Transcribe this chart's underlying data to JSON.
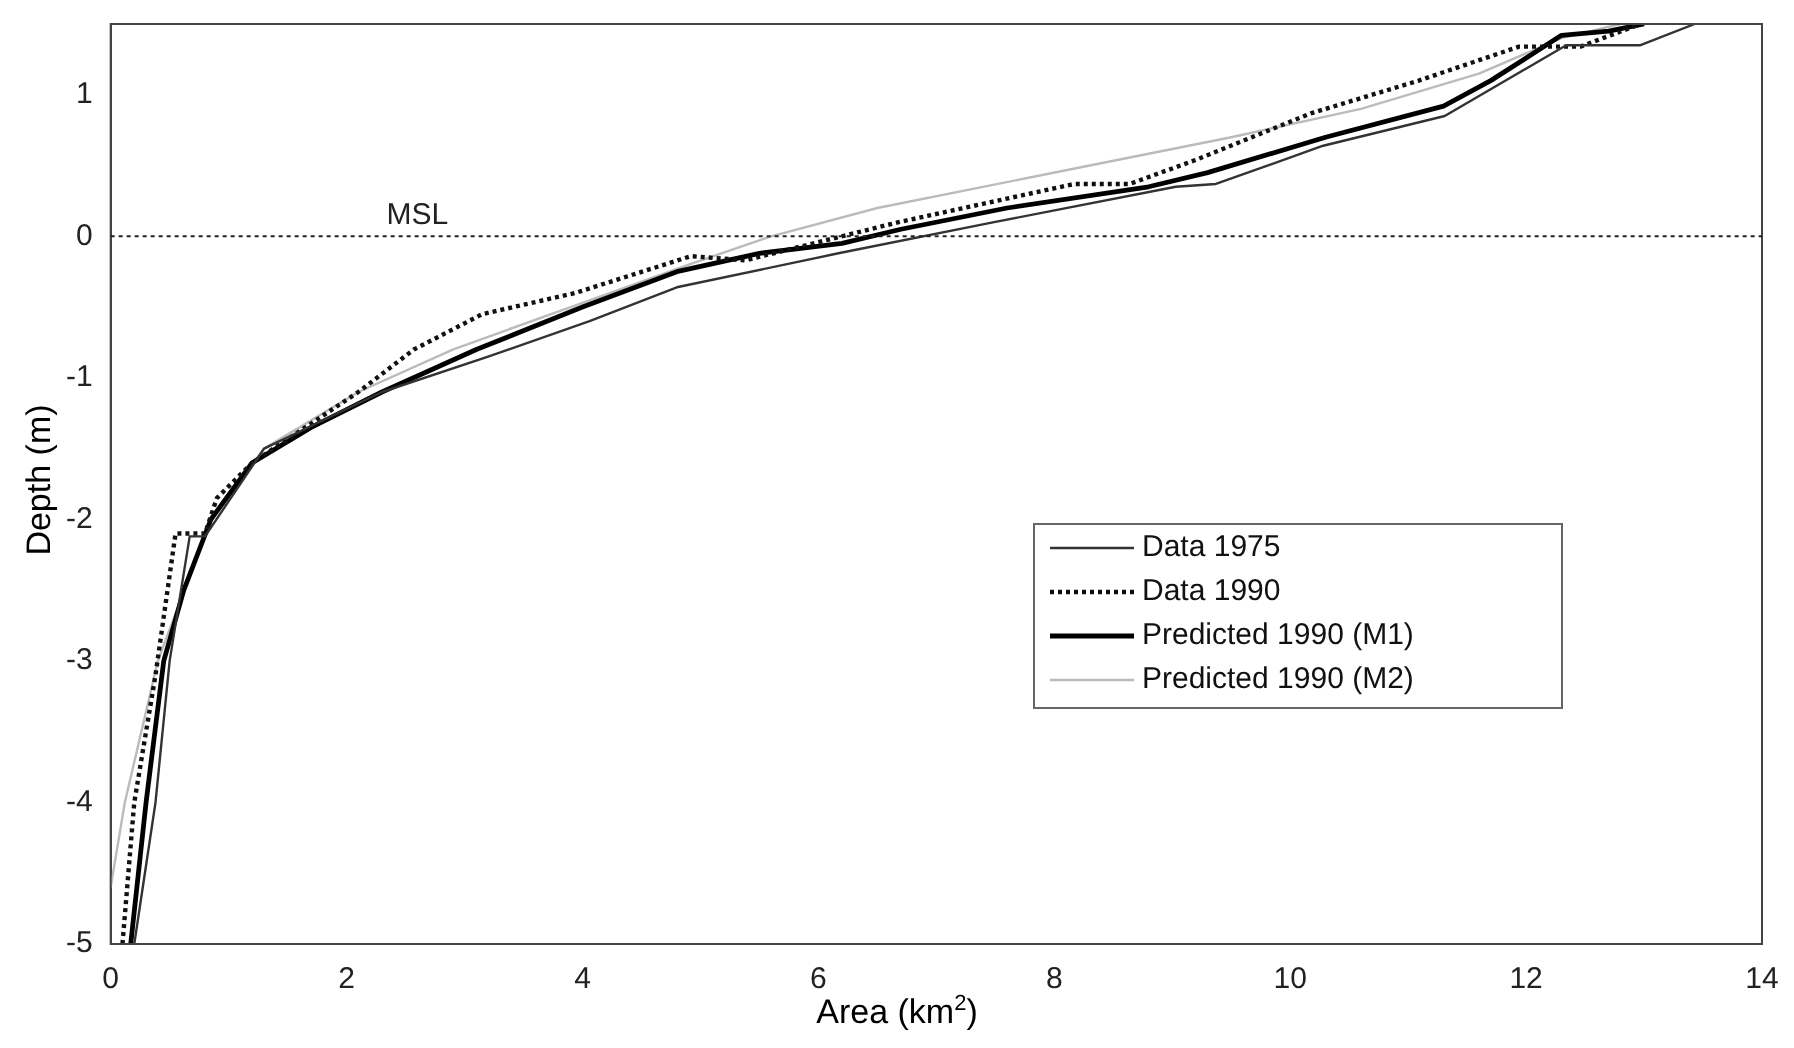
{
  "chart_data": {
    "type": "line",
    "xlabel": "Area (km$^{2}$)",
    "ylabel": "Depth (m)",
    "xlim": [
      0,
      14
    ],
    "xticks": [
      0,
      2,
      4,
      6,
      8,
      10,
      12,
      14
    ],
    "ylim": [
      -5,
      1.5
    ],
    "yticks": [
      -5,
      -4,
      -3,
      -2,
      -1,
      0,
      1
    ],
    "grid": false,
    "legend": "right",
    "marker": "none",
    "ref_lines": [
      {
        "axis": "y",
        "value": 0,
        "label": "MSL",
        "line_style": "dotted",
        "color": "#222222"
      }
    ],
    "series": [
      {
        "name": "Data 1975",
        "color": "#333333",
        "line_style": "solid",
        "x": [
          0.2,
          0.38,
          0.5,
          0.67,
          0.8,
          1.3,
          2.3,
          3.2,
          4.06,
          4.8,
          6.17,
          7.49,
          9.03,
          9.37,
          10.28,
          11.31,
          12.34,
          12.97,
          13.43
        ],
        "values": [
          -5,
          -4,
          -3,
          -2.12,
          -2.12,
          -1.5,
          -1.1,
          -0.85,
          -0.6,
          -0.36,
          -0.12,
          0.1,
          0.35,
          0.37,
          0.64,
          0.85,
          1.35,
          1.35,
          1.5
        ]
      },
      {
        "name": "Data 1990",
        "color": "#111111",
        "line_style": "dotted",
        "x": [
          0.1,
          0.2,
          0.38,
          0.55,
          0.8,
          0.9,
          1.2,
          2.1,
          2.57,
          3.15,
          3.94,
          4.92,
          5.38,
          6.68,
          8.17,
          8.64,
          9.2,
          10.18,
          11.09,
          11.94,
          12.46,
          12.97
        ],
        "values": [
          -5,
          -4,
          -3.1,
          -2.1,
          -2.1,
          -1.85,
          -1.6,
          -1.1,
          -0.8,
          -0.55,
          -0.4,
          -0.14,
          -0.17,
          0.1,
          0.37,
          0.37,
          0.54,
          0.87,
          1.1,
          1.34,
          1.34,
          1.5
        ]
      },
      {
        "name": "Predicted 1990 (M1)",
        "color": "#000000",
        "line_style": "solid",
        "x": [
          0.17,
          0.3,
          0.45,
          0.62,
          0.85,
          1.2,
          1.7,
          2.3,
          3.1,
          4.0,
          4.8,
          5.5,
          6.2,
          6.7,
          7.6,
          8.8,
          9.3,
          10.3,
          11.3,
          11.7,
          12.3,
          12.7,
          13.0
        ],
        "values": [
          -5,
          -4,
          -3,
          -2.5,
          -2,
          -1.6,
          -1.35,
          -1.1,
          -0.8,
          -0.5,
          -0.25,
          -0.12,
          -0.05,
          0.05,
          0.2,
          0.35,
          0.45,
          0.7,
          0.92,
          1.1,
          1.42,
          1.45,
          1.5
        ]
      },
      {
        "name": "Predicted 1990 (M2)",
        "color": "#bbbbbb",
        "line_style": "solid",
        "x": [
          0.0,
          0.12,
          0.4,
          0.85,
          1.3,
          2.1,
          2.9,
          3.9,
          4.9,
          5.6,
          6.5,
          8.3,
          9.5,
          10.6,
          11.6,
          12.3,
          12.8
        ],
        "values": [
          -4.6,
          -4,
          -3,
          -2,
          -1.5,
          -1.1,
          -0.8,
          -0.5,
          -0.2,
          0,
          0.2,
          0.5,
          0.7,
          0.9,
          1.15,
          1.4,
          1.5
        ]
      }
    ]
  }
}
